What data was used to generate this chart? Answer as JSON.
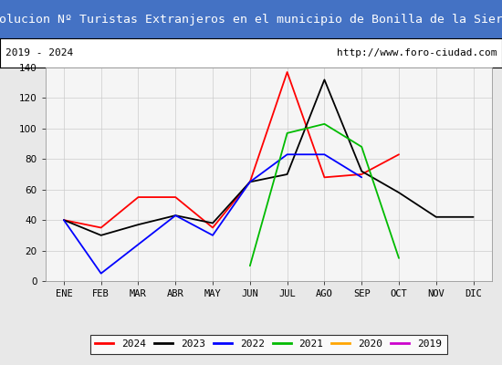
{
  "title": "Evolucion Nº Turistas Extranjeros en el municipio de Bonilla de la Sierra",
  "subtitle_left": "2019 - 2024",
  "subtitle_right": "http://www.foro-ciudad.com",
  "title_bg_color": "#4472c4",
  "title_text_color": "#ffffff",
  "months": [
    "ENE",
    "FEB",
    "MAR",
    "ABR",
    "MAY",
    "JUN",
    "JUL",
    "AGO",
    "SEP",
    "OCT",
    "NOV",
    "DIC"
  ],
  "ylim": [
    0,
    140
  ],
  "yticks": [
    0,
    20,
    40,
    60,
    80,
    100,
    120,
    140
  ],
  "series": {
    "2024": {
      "color": "#ff0000",
      "values": [
        40,
        35,
        55,
        55,
        35,
        65,
        137,
        68,
        70,
        83,
        null,
        null
      ]
    },
    "2023": {
      "color": "#000000",
      "values": [
        40,
        30,
        37,
        43,
        38,
        65,
        70,
        132,
        72,
        58,
        42,
        42
      ]
    },
    "2022": {
      "color": "#0000ff",
      "values": [
        40,
        5,
        null,
        43,
        30,
        65,
        83,
        83,
        68,
        null,
        null,
        null
      ]
    },
    "2021": {
      "color": "#00bb00",
      "values": [
        null,
        null,
        null,
        null,
        null,
        10,
        97,
        103,
        88,
        15,
        null,
        null
      ]
    },
    "2020": {
      "color": "#ffa500",
      "values": [
        null,
        null,
        null,
        null,
        null,
        null,
        null,
        null,
        null,
        null,
        null,
        null
      ]
    },
    "2019": {
      "color": "#cc00cc",
      "values": [
        null,
        null,
        null,
        null,
        null,
        null,
        null,
        null,
        null,
        null,
        null,
        null
      ]
    }
  },
  "legend_order": [
    "2024",
    "2023",
    "2022",
    "2021",
    "2020",
    "2019"
  ],
  "title_font_size": 9.5,
  "subtitle_font_size": 8,
  "tick_font_size": 7.5,
  "legend_font_size": 8,
  "bg_color": "#e8e8e8",
  "plot_bg_color": "#f5f5f5",
  "grid_color": "#cccccc"
}
